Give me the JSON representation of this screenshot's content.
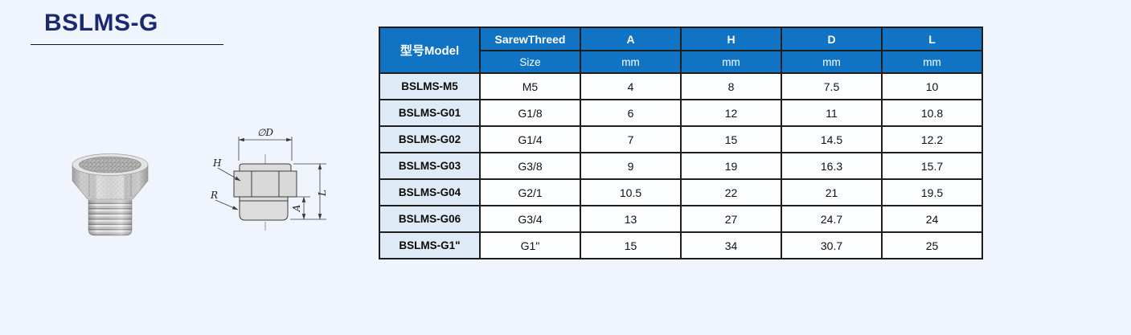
{
  "page": {
    "title": "BSLMS-G"
  },
  "diagram": {
    "labels": {
      "diameter": "∅D",
      "head": "H",
      "thread": "R",
      "thread_length": "A",
      "total_length": "L"
    }
  },
  "table": {
    "header": {
      "model": "型号Model",
      "thread_label": "SarewThreed",
      "thread_sub": "Size",
      "columns": [
        "A",
        "H",
        "D",
        "L"
      ],
      "unit": "mm"
    },
    "rows": [
      {
        "model": "BSLMS-M5",
        "size": "M5",
        "A": "4",
        "H": "8",
        "D": "7.5",
        "L": "10"
      },
      {
        "model": "BSLMS-G01",
        "size": "G1/8",
        "A": "6",
        "H": "12",
        "D": "11",
        "L": "10.8"
      },
      {
        "model": "BSLMS-G02",
        "size": "G1/4",
        "A": "7",
        "H": "15",
        "D": "14.5",
        "L": "12.2"
      },
      {
        "model": "BSLMS-G03",
        "size": "G3/8",
        "A": "9",
        "H": "19",
        "D": "16.3",
        "L": "15.7"
      },
      {
        "model": "BSLMS-G04",
        "size": "G2/1",
        "A": "10.5",
        "H": "22",
        "D": "21",
        "L": "19.5"
      },
      {
        "model": "BSLMS-G06",
        "size": "G3/4",
        "A": "13",
        "H": "27",
        "D": "24.7",
        "L": "24"
      },
      {
        "model": "BSLMS-G1\"",
        "size": "G1\"",
        "A": "15",
        "H": "34",
        "D": "30.7",
        "L": "25"
      }
    ]
  },
  "colors": {
    "page_bg": "#f0f5fd",
    "header_blue": "#1173c4",
    "model_col_bg": "#dfeaf7",
    "title_navy": "#1b2a70",
    "border_dark": "#1e1e1e"
  }
}
